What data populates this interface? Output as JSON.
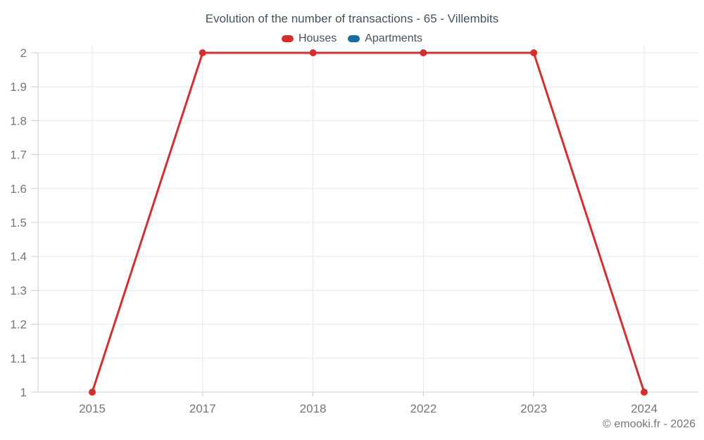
{
  "title": "Evolution of the number of transactions - 65 - Villembits",
  "legend": {
    "items": [
      {
        "label": "Houses",
        "color": "#d32f2f"
      },
      {
        "label": "Apartments",
        "color": "#1a6d9e"
      }
    ]
  },
  "footer": {
    "copyright": "© emooki.fr - 2026"
  },
  "colors": {
    "houses": "#d32f2f",
    "apartments": "#1a6d9e",
    "grid": "#e9e9e9",
    "axis": "#cccccc",
    "tick_text": "#757575",
    "title_text": "#44525c"
  },
  "chart_data": {
    "type": "line",
    "title": "Evolution of the number of transactions - 65 - Villembits",
    "categories": [
      "2015",
      "2017",
      "2018",
      "2022",
      "2023",
      "2024"
    ],
    "series": [
      {
        "name": "Houses",
        "color": "#d32f2f",
        "values": [
          1,
          2,
          2,
          2,
          2,
          1
        ]
      },
      {
        "name": "Apartments",
        "color": "#1a6d9e",
        "values": [
          null,
          null,
          null,
          null,
          null,
          null
        ]
      }
    ],
    "xlabel": "",
    "ylabel": "",
    "ylim": [
      1,
      2
    ],
    "yticks": [
      2,
      1.9,
      1.8,
      1.7,
      1.6,
      1.5,
      1.4,
      1.3,
      1.2,
      1.1,
      1
    ],
    "ytick_labels": [
      "2",
      "1.9",
      "1.8",
      "1.7",
      "1.6",
      "1.5",
      "1.4",
      "1.3",
      "1.2",
      "1.1",
      "1"
    ],
    "grid": true,
    "legend_position": "top",
    "marker": "circle"
  }
}
